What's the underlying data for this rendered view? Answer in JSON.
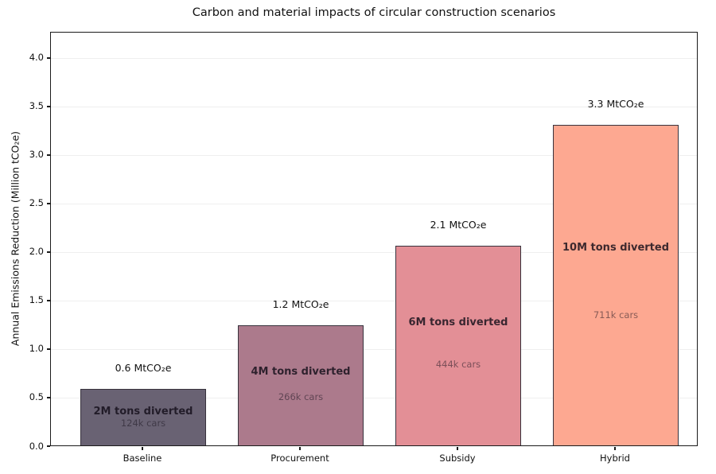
{
  "chart_data": {
    "type": "bar",
    "title": "Carbon and material impacts of circular construction scenarios",
    "xlabel": "",
    "ylabel": "Annual Emissions Reduction (Million tCO₂e)",
    "categories": [
      "Baseline",
      "Procurement",
      "Subsidy",
      "Hybrid"
    ],
    "values": [
      0.58,
      1.24,
      2.06,
      3.3
    ],
    "value_labels": [
      "0.6 MtCO₂e",
      "1.2 MtCO₂e",
      "2.1 MtCO₂e",
      "3.3 MtCO₂e"
    ],
    "tons_labels": [
      "2M tons diverted",
      "4M tons diverted",
      "6M tons diverted",
      "10M tons diverted"
    ],
    "cars_labels": [
      "124k cars",
      "266k cars",
      "444k cars",
      "711k cars"
    ],
    "bar_colors": [
      "#696273",
      "#ac7a8c",
      "#e38f96",
      "#fda891"
    ],
    "bar_edge_color": "#38333d",
    "yticks": [
      0.0,
      0.5,
      1.0,
      1.5,
      2.0,
      2.5,
      3.0,
      3.5,
      4.0
    ],
    "ylim": [
      0,
      4.27
    ],
    "grid": true,
    "grid_color": "#efefef",
    "legend_position": "none",
    "background_color": "#ffffff"
  }
}
